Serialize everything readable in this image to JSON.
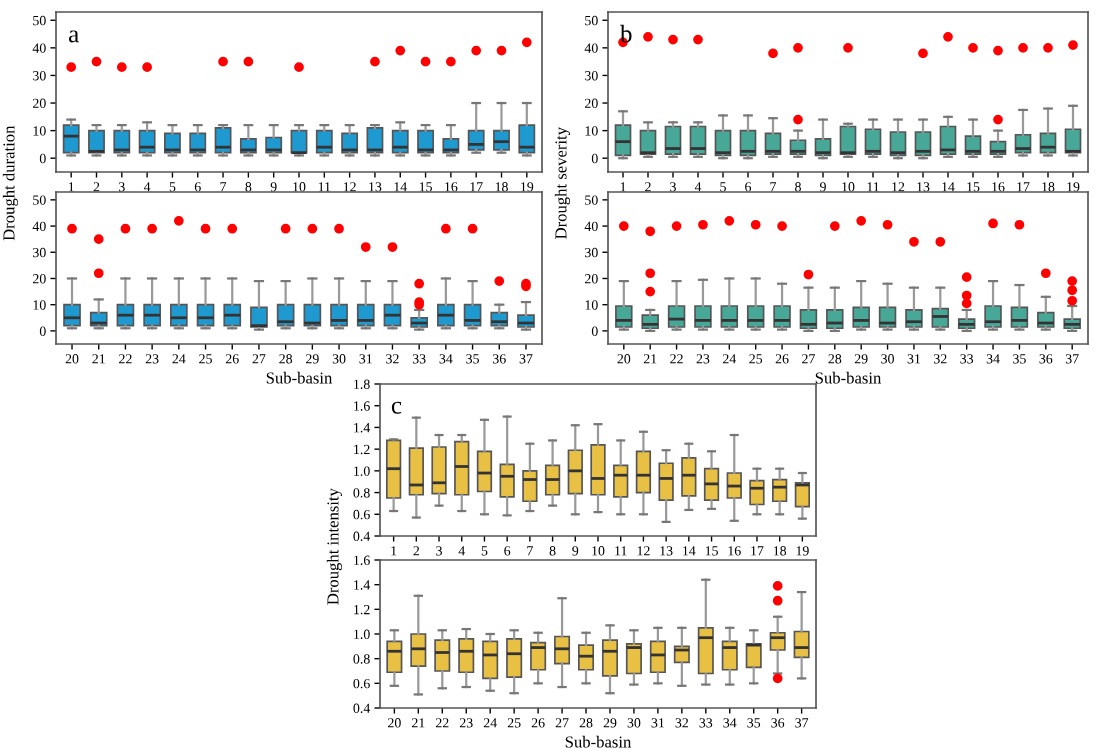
{
  "chart_data": [
    {
      "type": "box",
      "ylabel": "Drought duration",
      "annotations": [
        "a"
      ],
      "categories": [
        "1",
        "2",
        "3",
        "4",
        "5",
        "6",
        "7",
        "8",
        "9",
        "10",
        "11",
        "12",
        "13",
        "14",
        "15",
        "16",
        "17",
        "18",
        "19"
      ],
      "ylim": [
        -5,
        53
      ],
      "yticks": [
        0,
        10,
        20,
        30,
        40,
        50
      ],
      "series": [
        {
          "color": "#1e9ad0",
          "boxes": [
            {
              "low": 1,
              "q1": 2,
              "median": 8,
              "q3": 12,
              "high": 14,
              "outliers": [
                33
              ]
            },
            {
              "low": 1,
              "q1": 2,
              "median": 2.5,
              "q3": 10,
              "high": 12,
              "outliers": [
                35
              ]
            },
            {
              "low": 1,
              "q1": 2,
              "median": 3,
              "q3": 10,
              "high": 12,
              "outliers": [
                33
              ]
            },
            {
              "low": 1,
              "q1": 2,
              "median": 4,
              "q3": 10,
              "high": 13,
              "outliers": [
                33
              ]
            },
            {
              "low": 1,
              "q1": 2,
              "median": 3,
              "q3": 9,
              "high": 12
            },
            {
              "low": 1,
              "q1": 2,
              "median": 3,
              "q3": 9,
              "high": 12
            },
            {
              "low": 1,
              "q1": 2,
              "median": 4,
              "q3": 11,
              "high": 12,
              "outliers": [
                35
              ]
            },
            {
              "low": 1,
              "q1": 2,
              "median": 3,
              "q3": 7,
              "high": 12,
              "outliers": [
                35
              ]
            },
            {
              "low": 1,
              "q1": 2,
              "median": 3,
              "q3": 7.5,
              "high": 12
            },
            {
              "low": 1,
              "q1": 2,
              "median": 2,
              "q3": 10,
              "high": 12,
              "outliers": [
                33
              ]
            },
            {
              "low": 1,
              "q1": 2,
              "median": 4,
              "q3": 10,
              "high": 12
            },
            {
              "low": 1,
              "q1": 2,
              "median": 3,
              "q3": 9,
              "high": 12
            },
            {
              "low": 1,
              "q1": 2,
              "median": 3,
              "q3": 11,
              "high": 12,
              "outliers": [
                35
              ]
            },
            {
              "low": 1,
              "q1": 2,
              "median": 4,
              "q3": 10,
              "high": 13,
              "outliers": [
                39
              ]
            },
            {
              "low": 1,
              "q1": 2,
              "median": 3,
              "q3": 10,
              "high": 12,
              "outliers": [
                35
              ]
            },
            {
              "low": 1,
              "q1": 2,
              "median": 3,
              "q3": 7,
              "high": 12,
              "outliers": [
                35
              ]
            },
            {
              "low": 2,
              "q1": 3,
              "median": 5,
              "q3": 10,
              "high": 20,
              "outliers": [
                39
              ]
            },
            {
              "low": 2,
              "q1": 3,
              "median": 6,
              "q3": 10,
              "high": 20,
              "outliers": [
                39
              ]
            },
            {
              "low": 1,
              "q1": 2,
              "median": 4,
              "q3": 12,
              "high": 20,
              "outliers": [
                42
              ]
            }
          ]
        }
      ]
    },
    {
      "type": "box",
      "ylabel": "Drought severity",
      "annotations": [
        "b"
      ],
      "categories": [
        "1",
        "2",
        "3",
        "4",
        "5",
        "6",
        "7",
        "8",
        "9",
        "10",
        "11",
        "12",
        "13",
        "14",
        "15",
        "16",
        "17",
        "18",
        "19"
      ],
      "ylim": [
        -5,
        53
      ],
      "yticks": [
        0,
        10,
        20,
        30,
        40,
        50
      ],
      "series": [
        {
          "color": "#48a898",
          "boxes": [
            {
              "low": 0,
              "q1": 1,
              "median": 6,
              "q3": 12,
              "high": 17,
              "outliers": [
                42
              ]
            },
            {
              "low": 0.5,
              "q1": 1.5,
              "median": 2,
              "q3": 10,
              "high": 13,
              "outliers": [
                44
              ]
            },
            {
              "low": 0.5,
              "q1": 1.5,
              "median": 3.5,
              "q3": 11.5,
              "high": 13,
              "outliers": [
                43
              ]
            },
            {
              "low": 0.5,
              "q1": 1.5,
              "median": 3.5,
              "q3": 11.5,
              "high": 13,
              "outliers": [
                43
              ]
            },
            {
              "low": 0,
              "q1": 1,
              "median": 2,
              "q3": 10,
              "high": 15.5
            },
            {
              "low": 0,
              "q1": 1,
              "median": 2.5,
              "q3": 10,
              "high": 15.5
            },
            {
              "low": 0.5,
              "q1": 1.5,
              "median": 2.5,
              "q3": 9,
              "high": 14.5,
              "outliers": [
                38
              ]
            },
            {
              "low": 0.5,
              "q1": 1.5,
              "median": 2.5,
              "q3": 6.5,
              "high": 10,
              "outliers": [
                14,
                40
              ]
            },
            {
              "low": 0,
              "q1": 1,
              "median": 2,
              "q3": 7,
              "high": 14
            },
            {
              "low": 0.5,
              "q1": 1.5,
              "median": 2,
              "q3": 11.5,
              "high": 12.5,
              "outliers": [
                40
              ]
            },
            {
              "low": 0.5,
              "q1": 1.5,
              "median": 2.5,
              "q3": 10.5,
              "high": 14
            },
            {
              "low": 0,
              "q1": 1,
              "median": 2,
              "q3": 9.5,
              "high": 14
            },
            {
              "low": 0,
              "q1": 1,
              "median": 2.5,
              "q3": 9.5,
              "high": 14,
              "outliers": [
                38
              ]
            },
            {
              "low": 0.5,
              "q1": 1.5,
              "median": 3,
              "q3": 11.5,
              "high": 15,
              "outliers": [
                44
              ]
            },
            {
              "low": 0.5,
              "q1": 1.5,
              "median": 2.5,
              "q3": 8,
              "high": 14,
              "outliers": [
                40
              ]
            },
            {
              "low": 0.5,
              "q1": 1.5,
              "median": 2.5,
              "q3": 6,
              "high": 10,
              "outliers": [
                14,
                39
              ]
            },
            {
              "low": 1,
              "q1": 2,
              "median": 3.5,
              "q3": 8.5,
              "high": 17.5,
              "outliers": [
                40
              ]
            },
            {
              "low": 1,
              "q1": 2,
              "median": 4,
              "q3": 9,
              "high": 18,
              "outliers": [
                40
              ]
            },
            {
              "low": 1,
              "q1": 2,
              "median": 2.5,
              "q3": 10.5,
              "high": 19,
              "outliers": [
                41
              ]
            }
          ]
        }
      ]
    },
    {
      "type": "box",
      "xlabel": "Sub-basin",
      "categories": [
        "20",
        "21",
        "22",
        "23",
        "24",
        "25",
        "26",
        "27",
        "28",
        "29",
        "30",
        "31",
        "32",
        "33",
        "34",
        "35",
        "36",
        "37"
      ],
      "ylim": [
        -5,
        53
      ],
      "yticks": [
        0,
        10,
        20,
        30,
        40,
        50
      ],
      "series": [
        {
          "color": "#1e9ad0",
          "boxes": [
            {
              "low": 1,
              "q1": 2,
              "median": 5,
              "q3": 10,
              "high": 20,
              "outliers": [
                39
              ]
            },
            {
              "low": 1,
              "q1": 2,
              "median": 3,
              "q3": 7,
              "high": 12,
              "outliers": [
                22,
                35
              ]
            },
            {
              "low": 1,
              "q1": 2,
              "median": 6,
              "q3": 10,
              "high": 20,
              "outliers": [
                39
              ]
            },
            {
              "low": 1,
              "q1": 2,
              "median": 6,
              "q3": 10,
              "high": 20,
              "outliers": [
                39
              ]
            },
            {
              "low": 1,
              "q1": 2,
              "median": 5,
              "q3": 10,
              "high": 20,
              "outliers": [
                42
              ]
            },
            {
              "low": 1,
              "q1": 2,
              "median": 5,
              "q3": 10,
              "high": 20,
              "outliers": [
                39
              ]
            },
            {
              "low": 1,
              "q1": 2,
              "median": 6,
              "q3": 10,
              "high": 20,
              "outliers": [
                39
              ]
            },
            {
              "low": 0.5,
              "q1": 1.5,
              "median": 2,
              "q3": 9,
              "high": 19
            },
            {
              "low": 1,
              "q1": 2,
              "median": 3.5,
              "q3": 10,
              "high": 19,
              "outliers": [
                39
              ]
            },
            {
              "low": 1,
              "q1": 2,
              "median": 3,
              "q3": 10,
              "high": 20,
              "outliers": [
                39
              ]
            },
            {
              "low": 1,
              "q1": 2,
              "median": 4,
              "q3": 10,
              "high": 20,
              "outliers": [
                39
              ]
            },
            {
              "low": 1,
              "q1": 2,
              "median": 4,
              "q3": 10,
              "high": 19,
              "outliers": [
                32
              ]
            },
            {
              "low": 1,
              "q1": 2,
              "median": 6,
              "q3": 10,
              "high": 19,
              "outliers": [
                32
              ]
            },
            {
              "low": 0.5,
              "q1": 1.5,
              "median": 3,
              "q3": 5,
              "high": 8,
              "outliers": [
                10,
                11,
                18
              ]
            },
            {
              "low": 1,
              "q1": 2,
              "median": 6,
              "q3": 10,
              "high": 20,
              "outliers": [
                39
              ]
            },
            {
              "low": 1,
              "q1": 2,
              "median": 4,
              "q3": 10,
              "high": 19,
              "outliers": [
                39
              ]
            },
            {
              "low": 1,
              "q1": 2,
              "median": 3.5,
              "q3": 7,
              "high": 10,
              "outliers": [
                19
              ]
            },
            {
              "low": 0.5,
              "q1": 1.5,
              "median": 3,
              "q3": 6,
              "high": 11,
              "outliers": [
                17,
                18
              ]
            }
          ]
        }
      ]
    },
    {
      "type": "box",
      "xlabel": "Sub-basin",
      "categories": [
        "20",
        "21",
        "22",
        "23",
        "24",
        "25",
        "26",
        "27",
        "28",
        "29",
        "30",
        "31",
        "32",
        "33",
        "34",
        "35",
        "36",
        "37"
      ],
      "ylim": [
        -5,
        53
      ],
      "yticks": [
        0,
        10,
        20,
        30,
        40,
        50
      ],
      "series": [
        {
          "color": "#48a898",
          "boxes": [
            {
              "low": 0.5,
              "q1": 1.5,
              "median": 4,
              "q3": 9.5,
              "high": 19,
              "outliers": [
                40
              ]
            },
            {
              "low": 0,
              "q1": 1,
              "median": 2.5,
              "q3": 6,
              "high": 8,
              "outliers": [
                15,
                22,
                38
              ]
            },
            {
              "low": 0.5,
              "q1": 1.5,
              "median": 4.5,
              "q3": 9.5,
              "high": 19,
              "outliers": [
                40
              ]
            },
            {
              "low": 0.5,
              "q1": 1.5,
              "median": 4,
              "q3": 9.5,
              "high": 19.5,
              "outliers": [
                40.5
              ]
            },
            {
              "low": 0.5,
              "q1": 1.5,
              "median": 4,
              "q3": 9.5,
              "high": 20,
              "outliers": [
                42
              ]
            },
            {
              "low": 0.5,
              "q1": 1.5,
              "median": 4,
              "q3": 9.5,
              "high": 20,
              "outliers": [
                40.5
              ]
            },
            {
              "low": 0.5,
              "q1": 1.5,
              "median": 4,
              "q3": 9.5,
              "high": 18,
              "outliers": [
                40
              ]
            },
            {
              "low": 0,
              "q1": 1,
              "median": 2.5,
              "q3": 8,
              "high": 16.5,
              "outliers": [
                21.5
              ]
            },
            {
              "low": 0,
              "q1": 1,
              "median": 3,
              "q3": 8,
              "high": 16.5,
              "outliers": [
                40
              ]
            },
            {
              "low": 0.5,
              "q1": 1.5,
              "median": 4,
              "q3": 9,
              "high": 19,
              "outliers": [
                42
              ]
            },
            {
              "low": 0.5,
              "q1": 1.5,
              "median": 3,
              "q3": 9,
              "high": 18,
              "outliers": [
                40.5
              ]
            },
            {
              "low": 0.5,
              "q1": 1.5,
              "median": 3.5,
              "q3": 8,
              "high": 16.5,
              "outliers": [
                34
              ]
            },
            {
              "low": 0.5,
              "q1": 1.5,
              "median": 5.5,
              "q3": 8.5,
              "high": 16.5,
              "outliers": [
                34
              ]
            },
            {
              "low": 0,
              "q1": 1,
              "median": 2.5,
              "q3": 4.5,
              "high": 8,
              "outliers": [
                10.5,
                13.5,
                20.5
              ]
            },
            {
              "low": 0.5,
              "q1": 1.5,
              "median": 3.5,
              "q3": 9.5,
              "high": 19,
              "outliers": [
                41
              ]
            },
            {
              "low": 0.5,
              "q1": 1.5,
              "median": 4,
              "q3": 9,
              "high": 17.5,
              "outliers": [
                40.5
              ]
            },
            {
              "low": 0.5,
              "q1": 1.5,
              "median": 3,
              "q3": 7,
              "high": 13,
              "outliers": [
                22
              ]
            },
            {
              "low": 0,
              "q1": 1,
              "median": 2.5,
              "q3": 4.5,
              "high": 9.5,
              "outliers": [
                11.5,
                15.5,
                19
              ]
            }
          ]
        }
      ]
    },
    {
      "type": "box",
      "ylabel": "Drought intensity",
      "annotations": [
        "c"
      ],
      "categories": [
        "1",
        "2",
        "3",
        "4",
        "5",
        "6",
        "7",
        "8",
        "9",
        "10",
        "11",
        "12",
        "13",
        "14",
        "15",
        "16",
        "17",
        "18",
        "19"
      ],
      "ylim": [
        0.4,
        1.8
      ],
      "yticks": [
        {
          "value": 0.4,
          "label": "0.4"
        },
        {
          "value": 0.6,
          "label": "0.6"
        },
        {
          "value": 0.8,
          "label": "0.8"
        },
        {
          "value": 1.0,
          "label": "1.0"
        },
        {
          "value": 1.2,
          "label": "1.2"
        },
        {
          "value": 1.4,
          "label": "1.4"
        },
        {
          "value": 1.6,
          "label": "1.6"
        },
        {
          "value": 1.8,
          "label": "1.8"
        }
      ],
      "series": [
        {
          "color": "#e8c044",
          "boxes": [
            {
              "low": 0.63,
              "q1": 0.75,
              "median": 1.02,
              "q3": 1.28,
              "high": 1.29
            },
            {
              "low": 0.57,
              "q1": 0.78,
              "median": 0.87,
              "q3": 1.21,
              "high": 1.49
            },
            {
              "low": 0.68,
              "q1": 0.79,
              "median": 0.89,
              "q3": 1.22,
              "high": 1.33
            },
            {
              "low": 0.63,
              "q1": 0.78,
              "median": 1.04,
              "q3": 1.27,
              "high": 1.33
            },
            {
              "low": 0.6,
              "q1": 0.81,
              "median": 0.98,
              "q3": 1.18,
              "high": 1.47
            },
            {
              "low": 0.59,
              "q1": 0.76,
              "median": 0.95,
              "q3": 1.06,
              "high": 1.5
            },
            {
              "low": 0.63,
              "q1": 0.72,
              "median": 0.92,
              "q3": 1.0,
              "high": 1.25
            },
            {
              "low": 0.68,
              "q1": 0.78,
              "median": 0.92,
              "q3": 1.05,
              "high": 1.28
            },
            {
              "low": 0.6,
              "q1": 0.79,
              "median": 1.0,
              "q3": 1.19,
              "high": 1.42
            },
            {
              "low": 0.62,
              "q1": 0.78,
              "median": 0.93,
              "q3": 1.24,
              "high": 1.43
            },
            {
              "low": 0.6,
              "q1": 0.76,
              "median": 0.96,
              "q3": 1.05,
              "high": 1.28
            },
            {
              "low": 0.6,
              "q1": 0.8,
              "median": 0.96,
              "q3": 1.18,
              "high": 1.36
            },
            {
              "low": 0.53,
              "q1": 0.73,
              "median": 0.93,
              "q3": 1.07,
              "high": 1.19
            },
            {
              "low": 0.64,
              "q1": 0.77,
              "median": 0.96,
              "q3": 1.12,
              "high": 1.25
            },
            {
              "low": 0.65,
              "q1": 0.73,
              "median": 0.88,
              "q3": 1.02,
              "high": 1.18
            },
            {
              "low": 0.54,
              "q1": 0.75,
              "median": 0.86,
              "q3": 0.98,
              "high": 1.33
            },
            {
              "low": 0.6,
              "q1": 0.69,
              "median": 0.84,
              "q3": 0.91,
              "high": 1.02
            },
            {
              "low": 0.6,
              "q1": 0.72,
              "median": 0.85,
              "q3": 0.92,
              "high": 1.02
            },
            {
              "low": 0.56,
              "q1": 0.67,
              "median": 0.87,
              "q3": 0.89,
              "high": 0.98
            }
          ]
        }
      ]
    },
    {
      "type": "box",
      "xlabel": "Sub-basin",
      "categories": [
        "20",
        "21",
        "22",
        "23",
        "24",
        "25",
        "26",
        "27",
        "28",
        "29",
        "30",
        "31",
        "32",
        "33",
        "34",
        "35",
        "36",
        "37"
      ],
      "ylim": [
        0.4,
        1.6
      ],
      "yticks": [
        {
          "value": 0.4,
          "label": "0.4"
        },
        {
          "value": 0.6,
          "label": "0.6"
        },
        {
          "value": 0.8,
          "label": "0.8"
        },
        {
          "value": 1.0,
          "label": "1.0"
        },
        {
          "value": 1.2,
          "label": "1.2"
        },
        {
          "value": 1.4,
          "label": "1.4"
        },
        {
          "value": 1.6,
          "label": "1.6"
        }
      ],
      "series": [
        {
          "color": "#e8c044",
          "boxes": [
            {
              "low": 0.58,
              "q1": 0.69,
              "median": 0.86,
              "q3": 0.94,
              "high": 1.03
            },
            {
              "low": 0.51,
              "q1": 0.74,
              "median": 0.88,
              "q3": 1.0,
              "high": 1.31
            },
            {
              "low": 0.56,
              "q1": 0.7,
              "median": 0.85,
              "q3": 0.95,
              "high": 1.03
            },
            {
              "low": 0.57,
              "q1": 0.69,
              "median": 0.86,
              "q3": 0.96,
              "high": 1.04
            },
            {
              "low": 0.54,
              "q1": 0.64,
              "median": 0.83,
              "q3": 0.94,
              "high": 1.0
            },
            {
              "low": 0.52,
              "q1": 0.65,
              "median": 0.84,
              "q3": 0.96,
              "high": 1.03
            },
            {
              "low": 0.6,
              "q1": 0.71,
              "median": 0.89,
              "q3": 0.93,
              "high": 1.01
            },
            {
              "low": 0.57,
              "q1": 0.76,
              "median": 0.88,
              "q3": 0.98,
              "high": 1.29
            },
            {
              "low": 0.6,
              "q1": 0.71,
              "median": 0.82,
              "q3": 0.91,
              "high": 1.01
            },
            {
              "low": 0.52,
              "q1": 0.66,
              "median": 0.86,
              "q3": 0.95,
              "high": 1.07
            },
            {
              "low": 0.59,
              "q1": 0.68,
              "median": 0.89,
              "q3": 0.92,
              "high": 1.03
            },
            {
              "low": 0.6,
              "q1": 0.69,
              "median": 0.83,
              "q3": 0.94,
              "high": 1.05
            },
            {
              "low": 0.58,
              "q1": 0.77,
              "median": 0.87,
              "q3": 0.9,
              "high": 1.05
            },
            {
              "low": 0.59,
              "q1": 0.68,
              "median": 0.97,
              "q3": 1.05,
              "high": 1.44
            },
            {
              "low": 0.59,
              "q1": 0.71,
              "median": 0.89,
              "q3": 0.94,
              "high": 1.05
            },
            {
              "low": 0.6,
              "q1": 0.73,
              "median": 0.91,
              "q3": 0.92,
              "high": 1.03
            },
            {
              "low": 0.68,
              "q1": 0.87,
              "median": 0.97,
              "q3": 1.01,
              "high": 1.14,
              "outliers": [
                1.39,
                1.27,
                0.64
              ]
            },
            {
              "low": 0.64,
              "q1": 0.81,
              "median": 0.89,
              "q3": 1.02,
              "high": 1.34
            }
          ]
        }
      ]
    }
  ]
}
